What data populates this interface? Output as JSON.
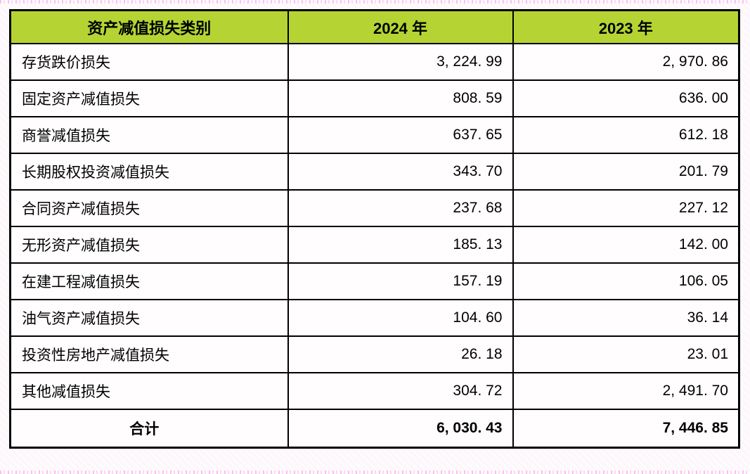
{
  "page": {
    "accent_pink": "#ee96e4",
    "table_border_color": "#000000"
  },
  "table": {
    "header_bg": "#b5d433",
    "header": {
      "category": "资产减值损失类别",
      "col_2024": "2024 年",
      "col_2023": "2023 年"
    },
    "rows": [
      {
        "label": "存货跌价损失",
        "y2024": "3, 224. 99",
        "y2023": "2, 970. 86"
      },
      {
        "label": "固定资产减值损失",
        "y2024": "808. 59",
        "y2023": "636. 00"
      },
      {
        "label": "商誉减值损失",
        "y2024": "637. 65",
        "y2023": "612. 18"
      },
      {
        "label": "长期股权投资减值损失",
        "y2024": "343. 70",
        "y2023": "201. 79"
      },
      {
        "label": "合同资产减值损失",
        "y2024": "237. 68",
        "y2023": "227. 12"
      },
      {
        "label": "无形资产减值损失",
        "y2024": "185. 13",
        "y2023": "142. 00"
      },
      {
        "label": "在建工程减值损失",
        "y2024": "157. 19",
        "y2023": "106. 05"
      },
      {
        "label": "油气资产减值损失",
        "y2024": "104. 60",
        "y2023": "36. 14"
      },
      {
        "label": "投资性房地产减值损失",
        "y2024": "26. 18",
        "y2023": "23. 01"
      },
      {
        "label": "其他减值损失",
        "y2024": "304. 72",
        "y2023": "2, 491. 70"
      }
    ],
    "total": {
      "label": "合计",
      "y2024": "6, 030. 43",
      "y2023": "7, 446. 85"
    }
  },
  "chart_data": {
    "type": "table",
    "title": "资产减值损失类别",
    "columns": [
      "资产减值损失类别",
      "2024 年",
      "2023 年"
    ],
    "categories": [
      "存货跌价损失",
      "固定资产减值损失",
      "商誉减值损失",
      "长期股权投资减值损失",
      "合同资产减值损失",
      "无形资产减值损失",
      "在建工程减值损失",
      "油气资产减值损失",
      "投资性房地产减值损失",
      "其他减值损失",
      "合计"
    ],
    "series": [
      {
        "name": "2024 年",
        "values": [
          3224.99,
          808.59,
          637.65,
          343.7,
          237.68,
          185.13,
          157.19,
          104.6,
          26.18,
          304.72,
          6030.43
        ]
      },
      {
        "name": "2023 年",
        "values": [
          2970.86,
          636.0,
          612.18,
          201.79,
          227.12,
          142.0,
          106.05,
          36.14,
          23.01,
          2491.7,
          7446.85
        ]
      }
    ]
  }
}
